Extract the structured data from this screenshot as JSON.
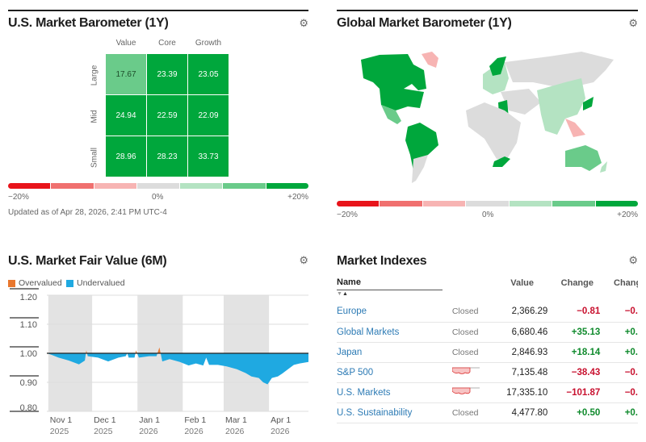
{
  "us_barometer": {
    "title": "U.S. Market Barometer (1Y)",
    "columns": [
      "Value",
      "Core",
      "Growth"
    ],
    "rows": [
      "Large",
      "Mid",
      "Small"
    ],
    "values": [
      [
        "17.67",
        "23.39",
        "23.05"
      ],
      [
        "24.94",
        "22.59",
        "22.09"
      ],
      [
        "28.96",
        "28.23",
        "33.73"
      ]
    ],
    "cell_colors": [
      [
        "#6acb8a",
        "#00a73c",
        "#00a73c"
      ],
      [
        "#00a73c",
        "#00a73c",
        "#00a73c"
      ],
      [
        "#00a73c",
        "#00a73c",
        "#00a73c"
      ]
    ],
    "scale": {
      "min": "−20%",
      "mid": "0%",
      "max": "+20%",
      "colors": [
        "#e8141b",
        "#f0706f",
        "#f7b4b3",
        "#dcdcdc",
        "#b4e3c2",
        "#6acb8a",
        "#00a73c"
      ]
    },
    "updated": "Updated as of Apr 28, 2026, 2:41 PM UTC-4"
  },
  "global_barometer": {
    "title": "Global Market Barometer (1Y)",
    "scale": {
      "min": "−20%",
      "mid": "0%",
      "max": "+20%"
    }
  },
  "fair_value": {
    "title": "U.S. Market Fair Value (6M)",
    "legend": [
      {
        "label": "Overvalued",
        "color": "#e8772e"
      },
      {
        "label": "Undervalued",
        "color": "#1fa9e1"
      }
    ]
  },
  "chart_data": {
    "type": "area",
    "ylim": [
      0.8,
      1.2
    ],
    "yticks": [
      "1.20",
      "1.10",
      "1.00",
      "0.90",
      "0.80"
    ],
    "baseline": 1.0,
    "xticks": [
      {
        "label": "Nov 1",
        "year": "2025",
        "date": "2025-11-01"
      },
      {
        "label": "Dec 1",
        "year": "2025",
        "date": "2025-12-01"
      },
      {
        "label": "Jan 1",
        "year": "2026",
        "date": "2026-01-01"
      },
      {
        "label": "Feb 1",
        "year": "2026",
        "date": "2026-02-01"
      },
      {
        "label": "Mar 1",
        "year": "2026",
        "date": "2026-03-01"
      },
      {
        "label": "Apr 1",
        "year": "2026",
        "date": "2026-04-01"
      }
    ],
    "xrange": [
      "2025-10-31",
      "2026-04-28"
    ],
    "points": [
      [
        "2025-10-31",
        1.0
      ],
      [
        "2025-11-03",
        0.995
      ],
      [
        "2025-11-08",
        0.985
      ],
      [
        "2025-11-15",
        0.975
      ],
      [
        "2025-11-22",
        0.962
      ],
      [
        "2025-11-26",
        0.975
      ],
      [
        "2025-11-27",
        1.01
      ],
      [
        "2025-11-28",
        0.99
      ],
      [
        "2025-12-05",
        0.985
      ],
      [
        "2025-12-12",
        0.972
      ],
      [
        "2025-12-19",
        0.985
      ],
      [
        "2025-12-24",
        0.99
      ],
      [
        "2025-12-25",
        1.0
      ],
      [
        "2025-12-26",
        0.985
      ],
      [
        "2025-12-30",
        0.985
      ],
      [
        "2025-12-31",
        1.01
      ],
      [
        "2026-01-02",
        0.985
      ],
      [
        "2026-01-09",
        0.99
      ],
      [
        "2026-01-14",
        0.99
      ],
      [
        "2026-01-16",
        1.02
      ],
      [
        "2026-01-18",
        0.972
      ],
      [
        "2026-01-23",
        0.98
      ],
      [
        "2026-01-30",
        0.97
      ],
      [
        "2026-02-05",
        0.958
      ],
      [
        "2026-02-10",
        0.965
      ],
      [
        "2026-02-15",
        0.958
      ],
      [
        "2026-02-17",
        0.985
      ],
      [
        "2026-02-19",
        0.96
      ],
      [
        "2026-02-25",
        0.96
      ],
      [
        "2026-03-03",
        0.955
      ],
      [
        "2026-03-10",
        0.945
      ],
      [
        "2026-03-16",
        0.932
      ],
      [
        "2026-03-20",
        0.92
      ],
      [
        "2026-03-25",
        0.915
      ],
      [
        "2026-03-28",
        0.9
      ],
      [
        "2026-03-31",
        0.893
      ],
      [
        "2026-04-03",
        0.915
      ],
      [
        "2026-04-07",
        0.92
      ],
      [
        "2026-04-10",
        0.93
      ],
      [
        "2026-04-14",
        0.945
      ],
      [
        "2026-04-18",
        0.96
      ],
      [
        "2026-04-22",
        0.965
      ],
      [
        "2026-04-28",
        0.97
      ]
    ]
  },
  "indexes": {
    "title": "Market Indexes",
    "headers": {
      "name": "Name",
      "value": "Value",
      "change": "Change",
      "change_pct": "Chang"
    },
    "rows": [
      {
        "name": "Europe",
        "status": "Closed",
        "value": "2,366.29",
        "change": "−0.81",
        "pct": "−0.",
        "dir": "neg"
      },
      {
        "name": "Global Markets",
        "status": "Closed",
        "value": "6,680.46",
        "change": "+35.13",
        "pct": "+0.",
        "dir": "pos"
      },
      {
        "name": "Japan",
        "status": "Closed",
        "value": "2,846.93",
        "change": "+18.14",
        "pct": "+0.",
        "dir": "pos"
      },
      {
        "name": "S&P 500",
        "status": "",
        "value": "7,135.48",
        "change": "−38.43",
        "pct": "−0.",
        "dir": "neg"
      },
      {
        "name": "U.S. Markets",
        "status": "",
        "value": "17,335.10",
        "change": "−101.87",
        "pct": "−0.",
        "dir": "neg"
      },
      {
        "name": "U.S. Sustainability",
        "status": "Closed",
        "value": "4,477.80",
        "change": "+0.50",
        "pct": "+0.",
        "dir": "pos"
      }
    ]
  }
}
